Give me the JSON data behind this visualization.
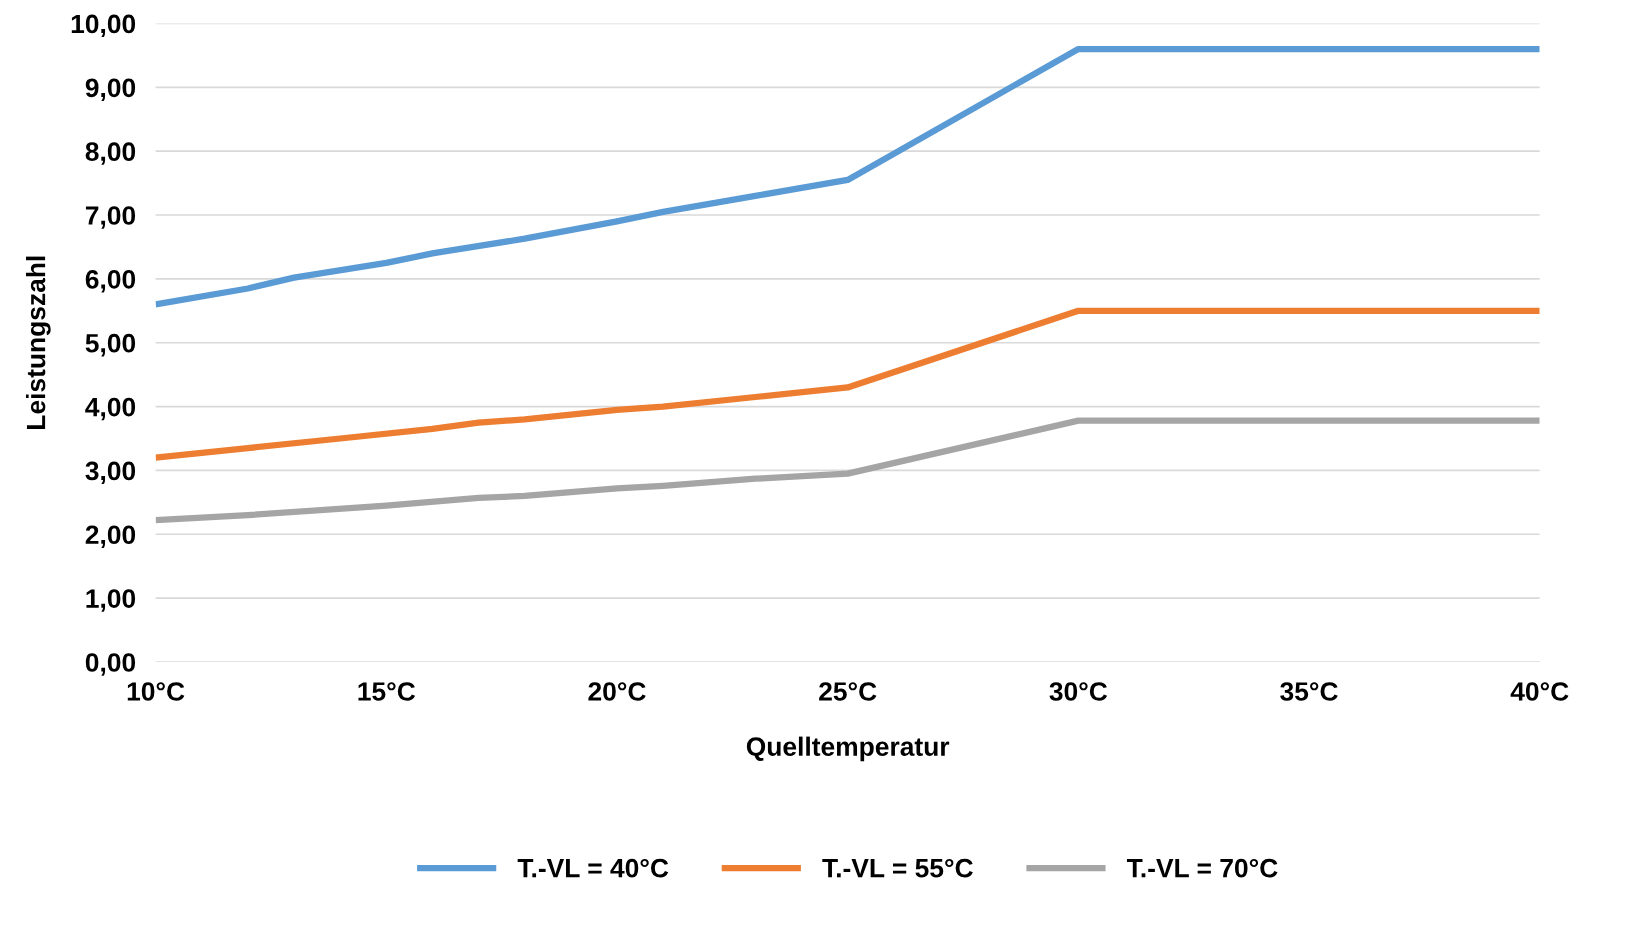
{
  "chart_data": {
    "type": "line",
    "xlabel": "Quelltemperatur",
    "ylabel": "Leistungszahl",
    "xlim": [
      10,
      40
    ],
    "ylim": [
      0,
      10
    ],
    "xticks": [
      {
        "value": 10,
        "label": "10°C"
      },
      {
        "value": 15,
        "label": "15°C"
      },
      {
        "value": 20,
        "label": "20°C"
      },
      {
        "value": 25,
        "label": "25°C"
      },
      {
        "value": 30,
        "label": "30°C"
      },
      {
        "value": 35,
        "label": "35°C"
      },
      {
        "value": 40,
        "label": "40°C"
      }
    ],
    "yticks": [
      {
        "value": 0,
        "label": "0,00"
      },
      {
        "value": 1,
        "label": "1,00"
      },
      {
        "value": 2,
        "label": "2,00"
      },
      {
        "value": 3,
        "label": "3,00"
      },
      {
        "value": 4,
        "label": "4,00"
      },
      {
        "value": 5,
        "label": "5,00"
      },
      {
        "value": 6,
        "label": "6,00"
      },
      {
        "value": 7,
        "label": "7,00"
      },
      {
        "value": 8,
        "label": "8,00"
      },
      {
        "value": 9,
        "label": "9,00"
      },
      {
        "value": 10,
        "label": "10,00"
      }
    ],
    "grid": "y",
    "legend": "bottom",
    "marker": "none",
    "line_style": "solid",
    "series": [
      {
        "name": "T.-VL = 40°C",
        "color": "#5b9bd5",
        "x": [
          10,
          12,
          13,
          15,
          16,
          18,
          20,
          21,
          23,
          25,
          30,
          40
        ],
        "values": [
          5.6,
          5.85,
          6.02,
          6.25,
          6.4,
          6.63,
          6.9,
          7.05,
          7.3,
          7.55,
          9.6,
          9.6
        ]
      },
      {
        "name": "T.-VL = 55°C",
        "color": "#ed7d31",
        "x": [
          10,
          12,
          14,
          16,
          17,
          18,
          20,
          21,
          23,
          25,
          30,
          40
        ],
        "values": [
          3.2,
          3.35,
          3.5,
          3.65,
          3.75,
          3.8,
          3.95,
          4.0,
          4.15,
          4.3,
          5.5,
          5.5
        ]
      },
      {
        "name": "T.-VL = 70°C",
        "color": "#a5a5a5",
        "x": [
          10,
          12,
          15,
          17,
          18,
          20,
          21,
          23,
          25,
          30,
          40
        ],
        "values": [
          2.22,
          2.3,
          2.45,
          2.57,
          2.6,
          2.72,
          2.76,
          2.87,
          2.95,
          3.78,
          3.78
        ]
      }
    ]
  }
}
